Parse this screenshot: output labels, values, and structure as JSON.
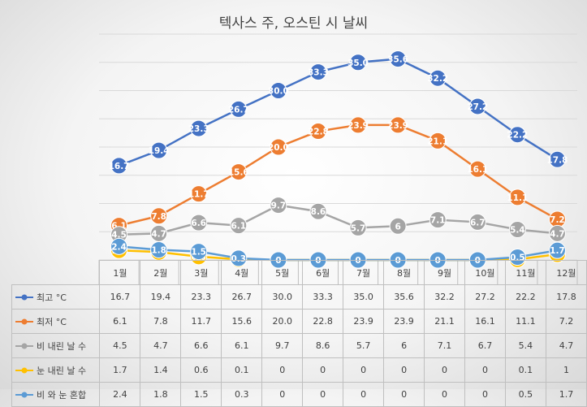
{
  "chart_data": {
    "type": "line",
    "title": "텍사스 주, 오스틴 시 날씨",
    "categories": [
      "1월",
      "2월",
      "3월",
      "4월",
      "5월",
      "6월",
      "7월",
      "8월",
      "9월",
      "10월",
      "11월",
      "12월"
    ],
    "ylim": [
      0,
      40
    ],
    "grid": true,
    "legend": "data-table",
    "series": [
      {
        "name": "최고 °C",
        "color": "#4472C4",
        "values": [
          "16.7",
          "19.4",
          "23.3",
          "26.7",
          "30.0",
          "33.3",
          "35.0",
          "35.6",
          "32.2",
          "27.2",
          "22.2",
          "17.8"
        ]
      },
      {
        "name": "최저 °C",
        "color": "#ED7D31",
        "values": [
          "6.1",
          "7.8",
          "11.7",
          "15.6",
          "20.0",
          "22.8",
          "23.9",
          "23.9",
          "21.1",
          "16.1",
          "11.1",
          "7.2"
        ]
      },
      {
        "name": "비 내린 날 수",
        "color": "#A5A5A5",
        "values": [
          "4.5",
          "4.7",
          "6.6",
          "6.1",
          "9.7",
          "8.6",
          "5.7",
          "6",
          "7.1",
          "6.7",
          "5.4",
          "4.7"
        ]
      },
      {
        "name": "눈 내린 날 수",
        "color": "#FFC000",
        "values": [
          "1.7",
          "1.4",
          "0.6",
          "0.1",
          "0",
          "0",
          "0",
          "0",
          "0",
          "0",
          "0.1",
          "1"
        ]
      },
      {
        "name": "비 와 눈 혼합",
        "color": "#5B9BD5",
        "values": [
          "2.4",
          "1.8",
          "1.5",
          "0.3",
          "0",
          "0",
          "0",
          "0",
          "0",
          "0",
          "0.5",
          "1.7"
        ]
      }
    ]
  }
}
